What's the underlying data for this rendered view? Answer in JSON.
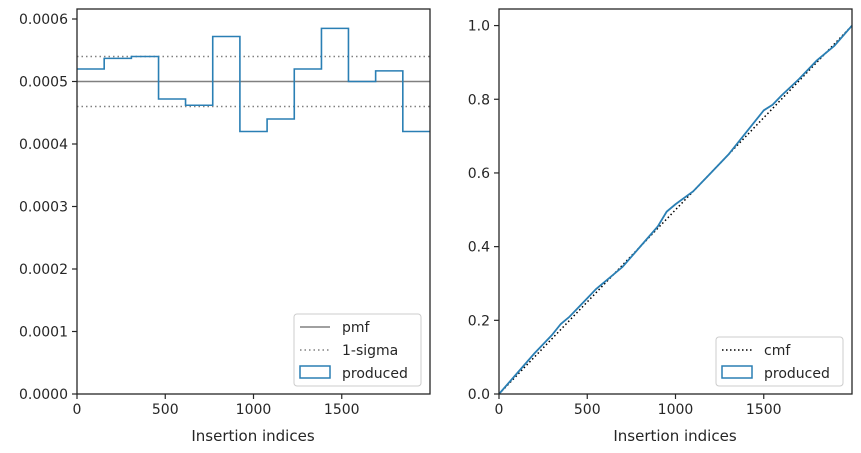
{
  "chart_data": [
    {
      "type": "step",
      "xlabel": "Insertion indices",
      "xlim": [
        0,
        2000
      ],
      "ylim": [
        0,
        0.000616
      ],
      "xticks": [
        0,
        500,
        1000,
        1500
      ],
      "xtick_labels": [
        "0",
        "500",
        "1000",
        "1500"
      ],
      "yticks": [
        0,
        0.0001,
        0.0002,
        0.0003,
        0.0004,
        0.0005,
        0.0006
      ],
      "ytick_labels": [
        "0.0000",
        "0.0001",
        "0.0002",
        "0.0003",
        "0.0004",
        "0.0005",
        "0.0006"
      ],
      "grid": false,
      "legend_position": "lower right",
      "series": [
        {
          "name": "produced",
          "color": "#2a7fb4",
          "bin_edges": [
            0,
            154,
            308,
            462,
            615,
            769,
            923,
            1077,
            1231,
            1385,
            1538,
            1692,
            1846,
            2000
          ],
          "values": [
            0.00052,
            0.000537,
            0.00054,
            0.000472,
            0.000462,
            0.000572,
            0.00042,
            0.00044,
            0.00052,
            0.000585,
            0.0005,
            0.000517,
            0.00042
          ]
        }
      ],
      "reference_lines": [
        {
          "name": "pmf",
          "y": 0.0005,
          "color": "#808080",
          "style": "solid"
        },
        {
          "name": "1-sigma",
          "y": 0.00054,
          "color": "#808080",
          "style": "dotted"
        },
        {
          "name": "1-sigma-lower",
          "y": 0.00046,
          "color": "#808080",
          "style": "dotted"
        }
      ],
      "legend": [
        {
          "label": "pmf",
          "kind": "solid-line",
          "color": "#808080"
        },
        {
          "label": "1-sigma",
          "kind": "dotted-line",
          "color": "#808080"
        },
        {
          "label": "produced",
          "kind": "box",
          "color": "#2a7fb4"
        }
      ]
    },
    {
      "type": "line",
      "xlabel": "Insertion indices",
      "xlim": [
        0,
        2000
      ],
      "ylim": [
        0,
        1.045
      ],
      "xticks": [
        0,
        500,
        1000,
        1500
      ],
      "xtick_labels": [
        "0",
        "500",
        "1000",
        "1500"
      ],
      "yticks": [
        0,
        0.2,
        0.4,
        0.6,
        0.8,
        1.0
      ],
      "ytick_labels": [
        "0.0",
        "0.2",
        "0.4",
        "0.6",
        "0.8",
        "1.0"
      ],
      "grid": false,
      "legend_position": "lower right",
      "series": [
        {
          "name": "cmf",
          "color": "#000000",
          "style": "dotted",
          "x": [
            0,
            2000
          ],
          "y": [
            0,
            1.0
          ]
        },
        {
          "name": "produced",
          "color": "#2a7fb4",
          "style": "solid",
          "x": [
            0,
            100,
            200,
            300,
            350,
            400,
            500,
            550,
            600,
            700,
            800,
            900,
            950,
            1000,
            1100,
            1200,
            1300,
            1400,
            1500,
            1550,
            1600,
            1700,
            1800,
            1900,
            2000
          ],
          "y": [
            0,
            0.055,
            0.11,
            0.16,
            0.19,
            0.21,
            0.26,
            0.285,
            0.305,
            0.345,
            0.4,
            0.455,
            0.495,
            0.515,
            0.55,
            0.6,
            0.65,
            0.71,
            0.77,
            0.785,
            0.81,
            0.855,
            0.905,
            0.945,
            1.0
          ]
        }
      ],
      "legend": [
        {
          "label": "cmf",
          "kind": "dotted-line",
          "color": "#000000"
        },
        {
          "label": "produced",
          "kind": "box",
          "color": "#2a7fb4"
        }
      ]
    }
  ]
}
